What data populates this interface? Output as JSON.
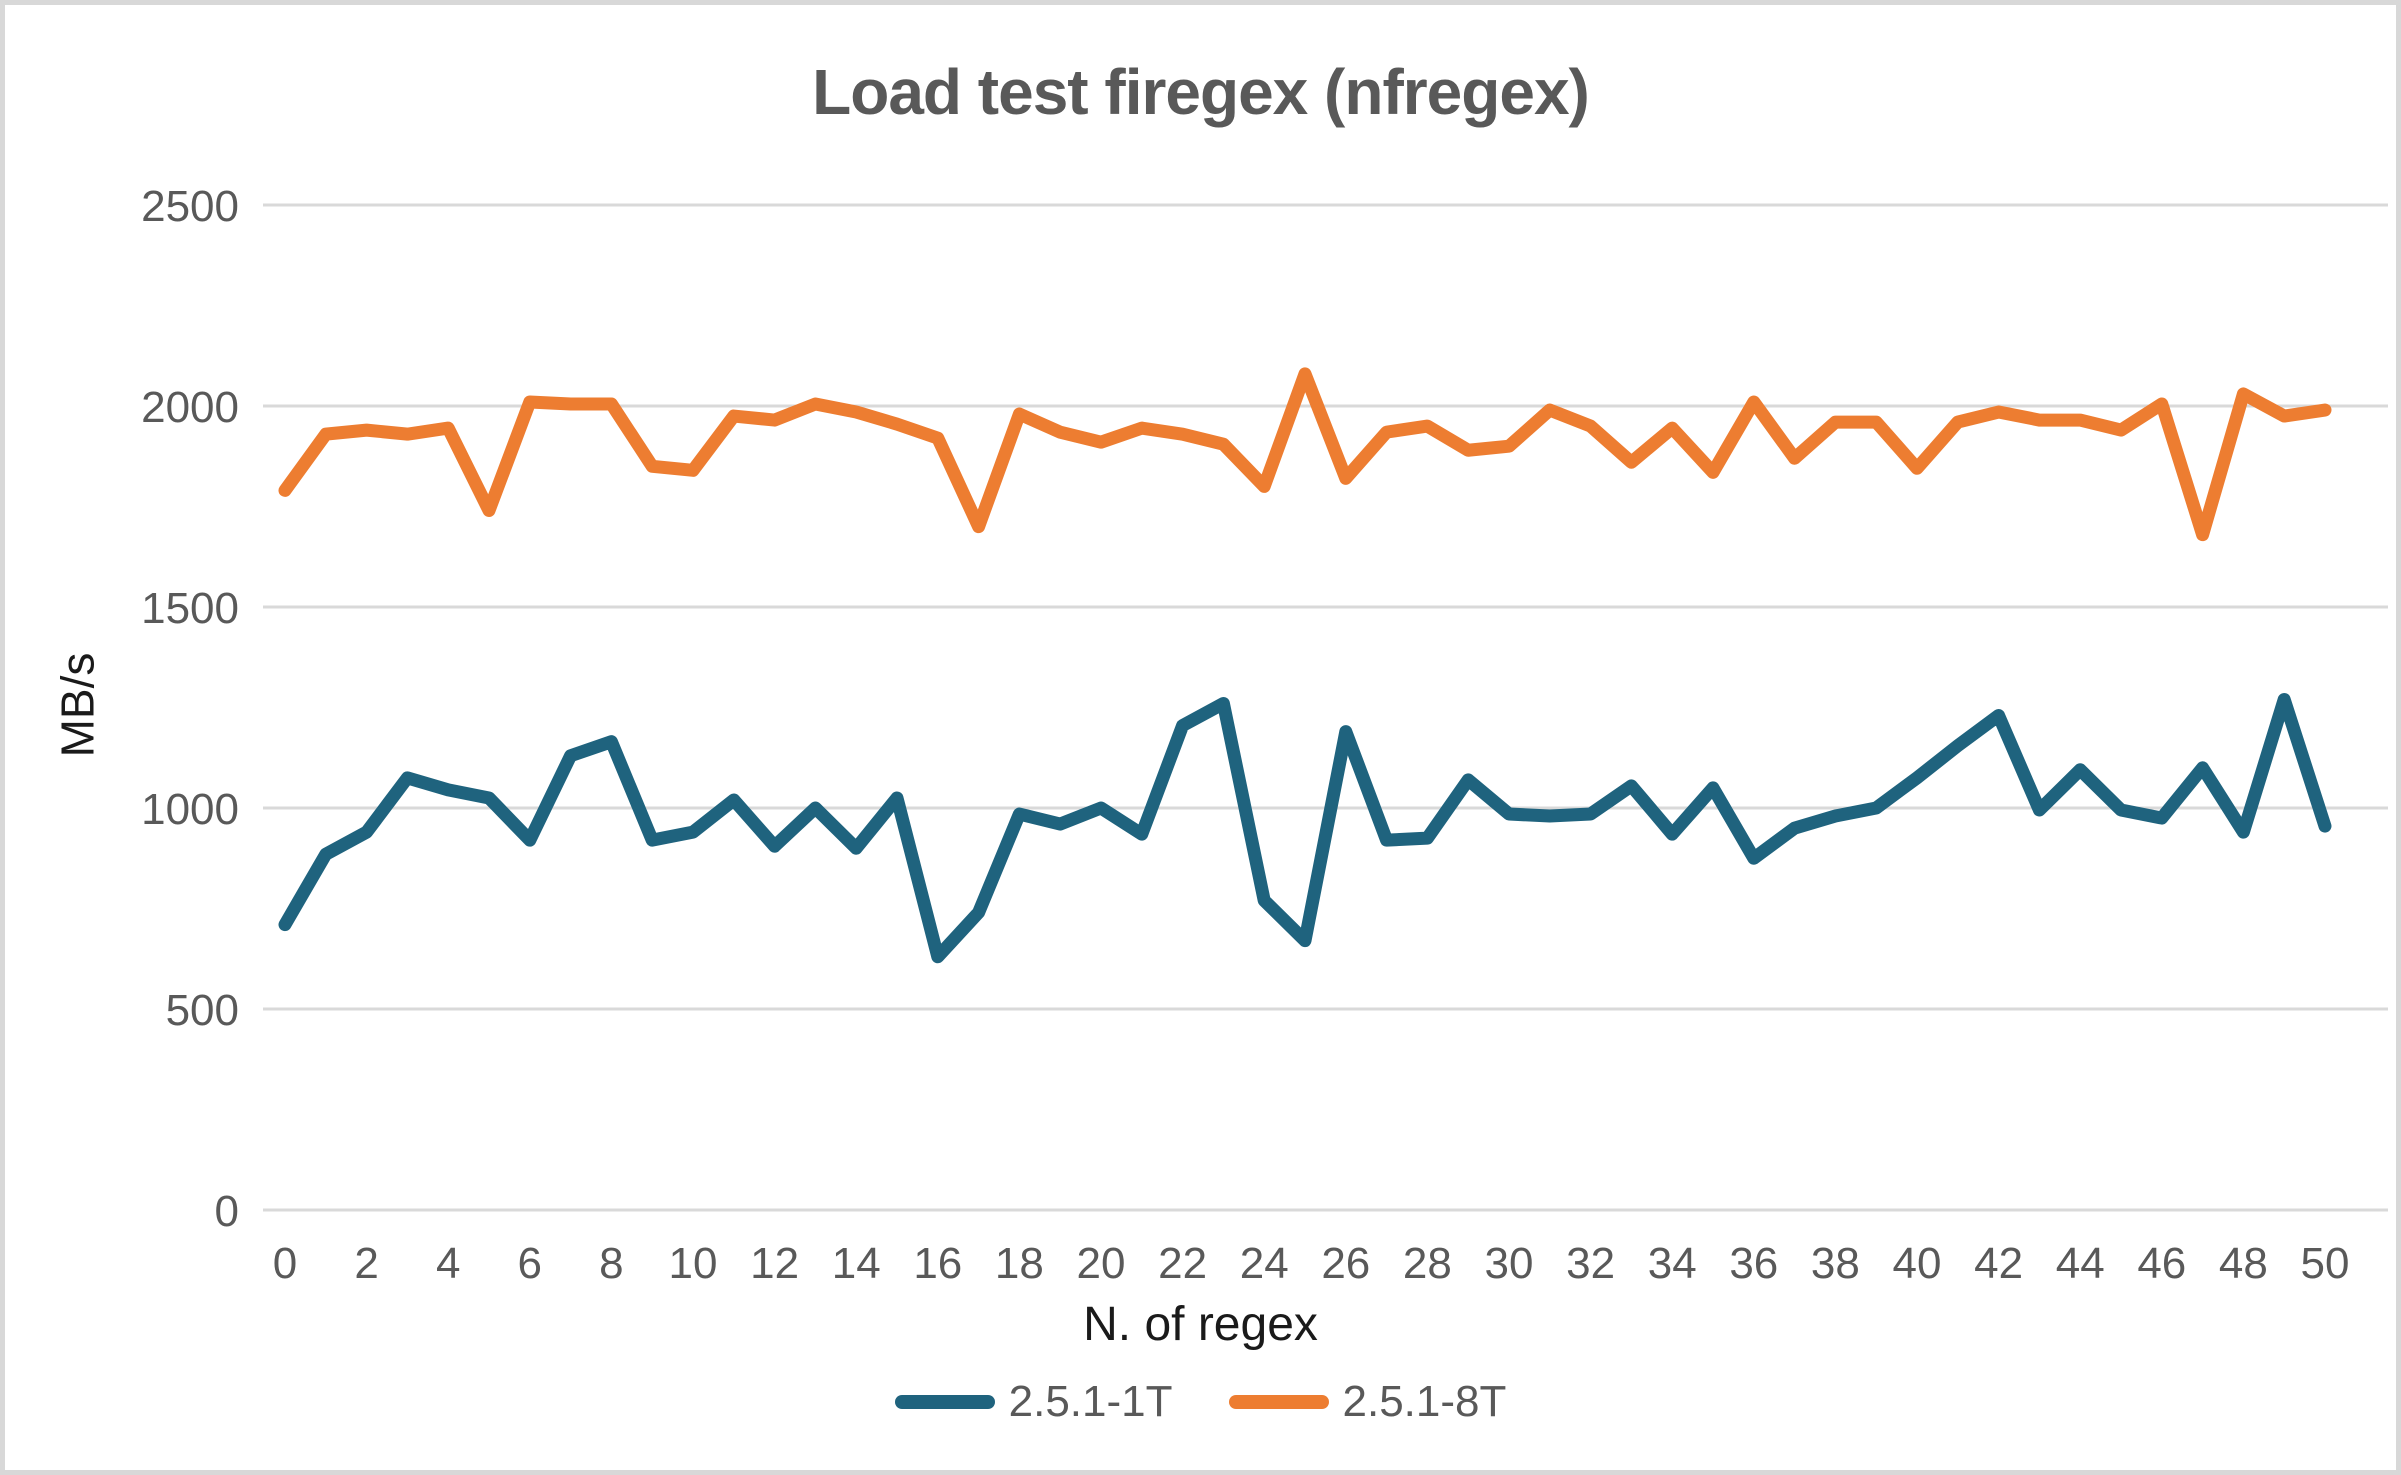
{
  "chart_data": {
    "type": "line",
    "title": "Load test firegex (nfregex)",
    "xlabel": "N. of regex",
    "ylabel": "MB/s",
    "ylim": [
      0,
      2500
    ],
    "grid": true,
    "legend_position": "bottom",
    "x": [
      0,
      1,
      2,
      3,
      4,
      5,
      6,
      7,
      8,
      9,
      10,
      11,
      12,
      13,
      14,
      15,
      16,
      17,
      18,
      19,
      20,
      21,
      22,
      23,
      24,
      25,
      26,
      27,
      28,
      29,
      30,
      31,
      32,
      33,
      34,
      35,
      36,
      37,
      38,
      39,
      40,
      41,
      42,
      43,
      44,
      45,
      46,
      47,
      48,
      49,
      50
    ],
    "x_ticks": [
      0,
      2,
      4,
      6,
      8,
      10,
      12,
      14,
      16,
      18,
      20,
      22,
      24,
      26,
      28,
      30,
      32,
      34,
      36,
      38,
      40,
      42,
      44,
      46,
      48,
      50
    ],
    "y_ticks": [
      0,
      500,
      1000,
      1500,
      2000,
      2500
    ],
    "series": [
      {
        "name": "2.5.1-1T",
        "color": "#1F637E",
        "values": [
          710,
          885,
          940,
          1075,
          1045,
          1025,
          920,
          1130,
          1165,
          920,
          940,
          1020,
          905,
          1000,
          900,
          1025,
          630,
          740,
          985,
          960,
          1000,
          935,
          1205,
          1260,
          770,
          670,
          1190,
          920,
          925,
          1070,
          985,
          980,
          985,
          1055,
          935,
          1050,
          875,
          950,
          980,
          1000,
          1075,
          1155,
          1230,
          995,
          1095,
          995,
          975,
          1100,
          940,
          1270,
          955
        ]
      },
      {
        "name": "2.5.1-8T",
        "color": "#ED7D31",
        "values": [
          1790,
          1930,
          1940,
          1930,
          1945,
          1740,
          2010,
          2005,
          2005,
          1850,
          1840,
          1975,
          1965,
          2005,
          1985,
          1955,
          1920,
          1700,
          1980,
          1935,
          1910,
          1945,
          1930,
          1905,
          1800,
          2080,
          1820,
          1935,
          1950,
          1890,
          1900,
          1990,
          1950,
          1860,
          1945,
          1835,
          2010,
          1870,
          1960,
          1960,
          1845,
          1960,
          1985,
          1965,
          1965,
          1940,
          2005,
          1680,
          2030,
          1975,
          1990
        ]
      }
    ]
  },
  "colors": {
    "gridline": "#D9D9D9",
    "axis_line": "#D9D9D9",
    "tick_text": "#595959",
    "title_text": "#595959",
    "axis_title_text": "#1A1A1A",
    "background": "#FFFFFF",
    "frame_border": "#D8D8D8"
  }
}
